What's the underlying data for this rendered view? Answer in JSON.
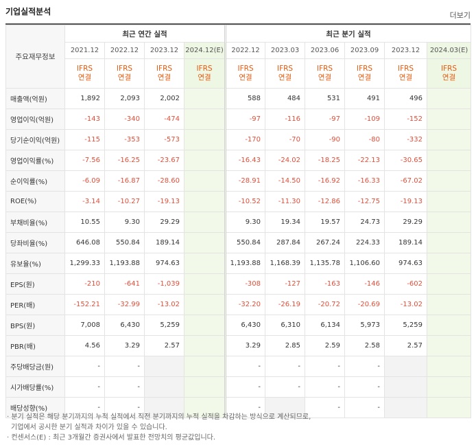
{
  "title": "기업실적분석",
  "more": "더보기",
  "header": {
    "row_label": "주요재무정보",
    "annual": "최근 연간 실적",
    "quarterly": "최근 분기 실적",
    "annual_periods": [
      "2021.12",
      "2022.12",
      "2023.12",
      "2024.12(E)"
    ],
    "quarter_periods": [
      "2022.12",
      "2023.03",
      "2023.06",
      "2023.09",
      "2023.12",
      "2024.03(E)"
    ],
    "basis_a": "IFRS",
    "basis_b": "연결"
  },
  "rows": [
    {
      "label": "매출액(억원)",
      "annual": [
        "1,892",
        "2,093",
        "2,002",
        ""
      ],
      "quarter": [
        "588",
        "484",
        "531",
        "491",
        "496",
        ""
      ]
    },
    {
      "label": "영업이익(억원)",
      "annual": [
        "-143",
        "-340",
        "-474",
        ""
      ],
      "quarter": [
        "-97",
        "-116",
        "-97",
        "-109",
        "-152",
        ""
      ]
    },
    {
      "label": "당기순이익(억원)",
      "annual": [
        "-115",
        "-353",
        "-573",
        ""
      ],
      "quarter": [
        "-170",
        "-70",
        "-90",
        "-80",
        "-332",
        ""
      ]
    },
    {
      "label": "영업이익률(%)",
      "annual": [
        "-7.56",
        "-16.25",
        "-23.67",
        ""
      ],
      "quarter": [
        "-16.43",
        "-24.02",
        "-18.25",
        "-22.13",
        "-30.65",
        ""
      ]
    },
    {
      "label": "순이익률(%)",
      "annual": [
        "-6.09",
        "-16.87",
        "-28.60",
        ""
      ],
      "quarter": [
        "-28.91",
        "-14.50",
        "-16.92",
        "-16.33",
        "-67.02",
        ""
      ]
    },
    {
      "label": "ROE(%)",
      "annual": [
        "-3.14",
        "-10.27",
        "-19.13",
        ""
      ],
      "quarter": [
        "-10.52",
        "-11.30",
        "-12.86",
        "-12.75",
        "-19.13",
        ""
      ]
    },
    {
      "label": "부채비율(%)",
      "annual": [
        "10.55",
        "9.30",
        "29.29",
        ""
      ],
      "quarter": [
        "9.30",
        "19.34",
        "19.57",
        "24.73",
        "29.29",
        ""
      ]
    },
    {
      "label": "당좌비율(%)",
      "annual": [
        "646.08",
        "550.84",
        "189.14",
        ""
      ],
      "quarter": [
        "550.84",
        "287.84",
        "267.24",
        "224.33",
        "189.14",
        ""
      ]
    },
    {
      "label": "유보율(%)",
      "annual": [
        "1,299.33",
        "1,193.88",
        "974.63",
        ""
      ],
      "quarter": [
        "1,193.88",
        "1,168.39",
        "1,135.78",
        "1,106.60",
        "974.63",
        ""
      ]
    },
    {
      "label": "EPS(원)",
      "annual": [
        "-210",
        "-641",
        "-1,039",
        ""
      ],
      "quarter": [
        "-308",
        "-127",
        "-163",
        "-146",
        "-602",
        ""
      ]
    },
    {
      "label": "PER(배)",
      "annual": [
        "-152.21",
        "-32.99",
        "-13.02",
        ""
      ],
      "quarter": [
        "-32.20",
        "-26.19",
        "-20.72",
        "-20.69",
        "-13.02",
        ""
      ]
    },
    {
      "label": "BPS(원)",
      "annual": [
        "7,008",
        "6,430",
        "5,259",
        ""
      ],
      "quarter": [
        "6,430",
        "6,310",
        "6,134",
        "5,973",
        "5,259",
        ""
      ]
    },
    {
      "label": "PBR(배)",
      "annual": [
        "4.56",
        "3.29",
        "2.57",
        ""
      ],
      "quarter": [
        "3.29",
        "2.85",
        "2.59",
        "2.58",
        "2.57",
        ""
      ]
    },
    {
      "label": "주당배당금(원)",
      "annual": [
        "-",
        "-",
        "",
        ""
      ],
      "quarter": [
        "-",
        "-",
        "-",
        "-",
        "",
        ""
      ]
    },
    {
      "label": "시가배당률(%)",
      "annual": [
        "-",
        "-",
        "",
        ""
      ],
      "quarter": [
        "-",
        "-",
        "-",
        "-",
        "",
        ""
      ]
    },
    {
      "label": "배당성향(%)",
      "annual": [
        "-",
        "-",
        "",
        ""
      ],
      "quarter": [
        "-",
        "",
        "-",
        "-",
        "",
        ""
      ]
    }
  ],
  "footnotes": [
    "· 분기 실적은 해당 분기까지의 누적 실적에서 직전 분기까지의 누적 실적을 차감하는 방식으로 계산되므로,",
    "  기업에서 공시한 분기 실적과 차이가 있을 수 있습니다.",
    "· 컨센서스(E) : 최근 3개월간 증권사에서 발표한 전망치의 평균값입니다."
  ]
}
